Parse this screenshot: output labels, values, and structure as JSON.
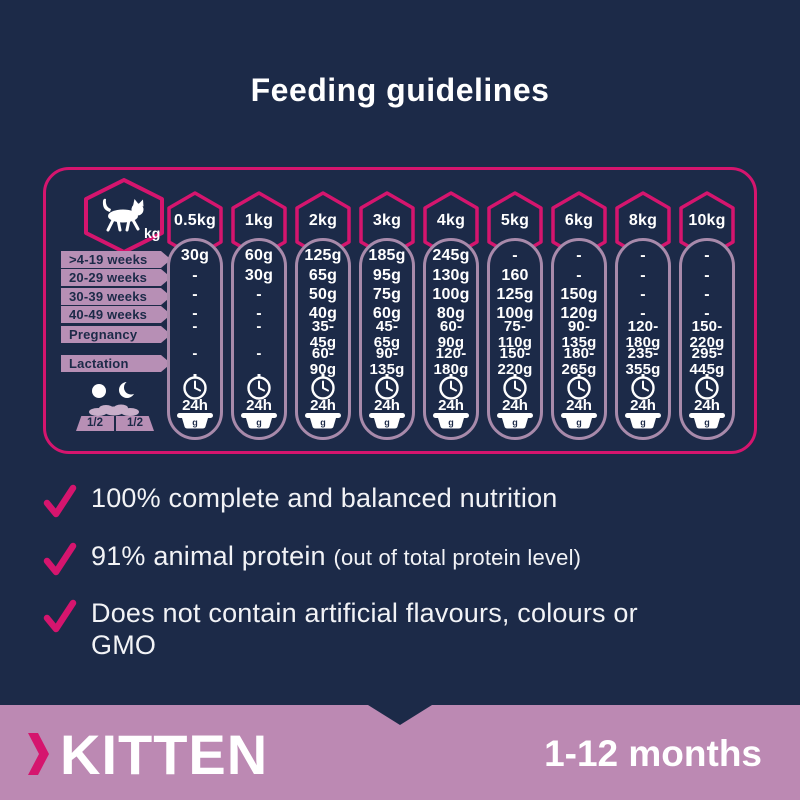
{
  "colors": {
    "background_navy": "#1c2a48",
    "accent_pink": "#d5156e",
    "capsule_mauve": "#a88aab",
    "label_mauve": "#b78fb5",
    "footer_purple": "#bc89b3",
    "text_white": "#ffffff"
  },
  "title": "Feeding guidelines",
  "table": {
    "unit": "kg",
    "weights": [
      "0.5kg",
      "1kg",
      "2kg",
      "3kg",
      "4kg",
      "5kg",
      "6kg",
      "8kg",
      "10kg"
    ],
    "rows": [
      {
        "label": ">4-19 weeks",
        "two_line": false,
        "values": [
          "30g",
          "60g",
          "125g",
          "185g",
          "245g",
          "-",
          "-",
          "-",
          "-"
        ]
      },
      {
        "label": "20-29 weeks",
        "two_line": false,
        "values": [
          "-",
          "30g",
          "65g",
          "95g",
          "130g",
          "160",
          "-",
          "-",
          "-"
        ]
      },
      {
        "label": "30-39 weeks",
        "two_line": false,
        "values": [
          "-",
          "-",
          "50g",
          "75g",
          "100g",
          "125g",
          "150g",
          "-",
          "-"
        ]
      },
      {
        "label": "40-49 weeks",
        "two_line": false,
        "values": [
          "-",
          "-",
          "40g",
          "60g",
          "80g",
          "100g",
          "120g",
          "-",
          "-"
        ]
      },
      {
        "label": "Pregnancy",
        "two_line": true,
        "values": [
          "-",
          "-",
          "35-45g",
          "45-65g",
          "60-90g",
          "75-110g",
          "90-135g",
          "120-180g",
          "150-220g"
        ]
      },
      {
        "label": "Lactation",
        "two_line": true,
        "values": [
          "-",
          "-",
          "60-90g",
          "90-135g",
          "120-180g",
          "150-220g",
          "180-265g",
          "235-355g",
          "295-445g"
        ]
      }
    ],
    "column_footer": {
      "clock": "24h",
      "bowl": "g"
    },
    "legend": {
      "day_half": "1/2",
      "night_half": "1/2"
    }
  },
  "bullets": [
    {
      "main": "100% complete and balanced nutrition",
      "note": ""
    },
    {
      "main": "91% animal protein",
      "note": "(out of total protein level)"
    },
    {
      "main": "Does not contain artificial flavours, colours or\nGMO",
      "note": ""
    }
  ],
  "footer": {
    "product": "KITTEN",
    "age_range": "1-12 months"
  }
}
